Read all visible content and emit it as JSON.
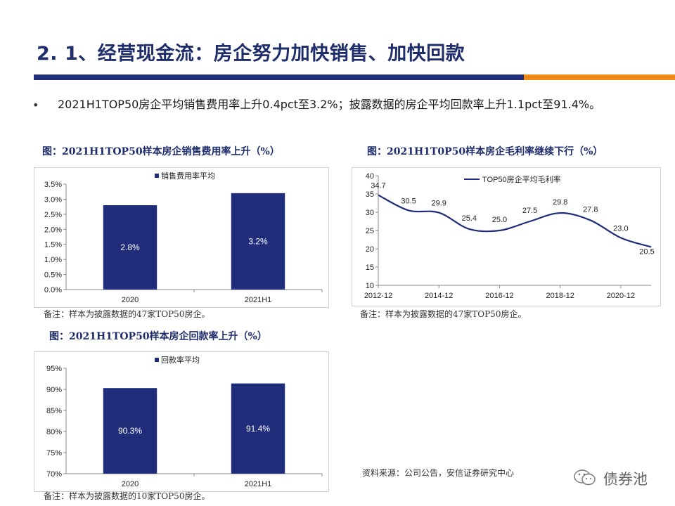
{
  "page": {
    "title": "2. 1、经营现金流：房企努力加快销售、加快回款",
    "bullet": "2021H1TOP50房企平均销售费用率上升0.4pct至3.2%；披露数据的房企平均回款率上升1.1pct至91.4%。",
    "source": "资料来源：公司公告，安信证券研究中心",
    "watermark": "债券池",
    "colors": {
      "navy": "#1f2d7a",
      "orange": "#ef8a17",
      "title": "#1f2d6b"
    }
  },
  "chart_data": [
    {
      "type": "bar",
      "caption": "图：2021H1TOP50样本房企销售费用率上升（%）",
      "categories": [
        "2020",
        "2021H1"
      ],
      "series": [
        {
          "name": "销售费用率平均",
          "values": [
            2.8,
            3.2
          ]
        }
      ],
      "value_labels": [
        "2.8%",
        "3.2%"
      ],
      "yticks": [
        "0.0%",
        "0.5%",
        "1.0%",
        "1.5%",
        "2.0%",
        "2.5%",
        "3.0%",
        "3.5%"
      ],
      "ylim": [
        0,
        3.5
      ],
      "note": "备注：样本为披露数据的47家TOP50房企。",
      "color": "#1f2d7a",
      "legend": "top"
    },
    {
      "type": "line",
      "caption": "图：2021H1T0P50样本房企毛利率继续下行（%）",
      "x": [
        "2012-12",
        "2013-12",
        "2014-12",
        "2015-12",
        "2016-12",
        "2017-12",
        "2018-12",
        "2019-12",
        "2020-12",
        "2021-06"
      ],
      "xticks": [
        "2012-12",
        "2014-12",
        "2016-12",
        "2018-12",
        "2020-12"
      ],
      "series": [
        {
          "name": "TOP50房企平均毛利率",
          "values": [
            34.7,
            30.5,
            29.9,
            25.4,
            25.0,
            27.5,
            29.8,
            27.8,
            23.0,
            20.5
          ]
        }
      ],
      "value_labels": [
        "34.7",
        "30.5",
        "29.9",
        "25.4",
        "25.0",
        "27.5",
        "29.8",
        "27.8",
        "23.0",
        "20.5"
      ],
      "yticks": [
        "10",
        "15",
        "20",
        "25",
        "30",
        "35",
        "40"
      ],
      "ylim": [
        10,
        40
      ],
      "note": "备注：样本为披露数据的47家TOP50房企。",
      "color": "#1f2d7a",
      "legend": "top"
    },
    {
      "type": "bar",
      "caption": "图：2021H1TOP50样本房企回款率上升（%）",
      "categories": [
        "2020",
        "2021H1"
      ],
      "series": [
        {
          "name": "回款率平均",
          "values": [
            90.3,
            91.4
          ]
        }
      ],
      "value_labels": [
        "90.3%",
        "91.4%"
      ],
      "yticks": [
        "70%",
        "75%",
        "80%",
        "85%",
        "90%",
        "95%"
      ],
      "ylim": [
        70,
        95
      ],
      "note": "备注：样本为披露数据的10家TOP50房企。",
      "color": "#1f2d7a",
      "legend": "top"
    }
  ]
}
